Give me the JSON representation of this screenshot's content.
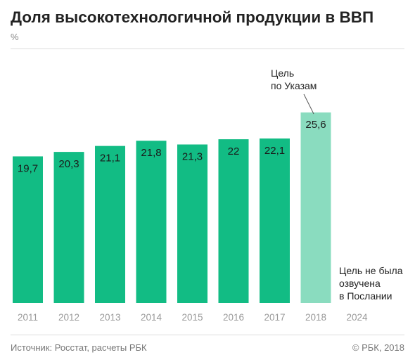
{
  "title": "Доля высокотехнологичной продукции в ВВП",
  "unit": "%",
  "footer": {
    "source": "Источник: Росстат, расчеты РБК",
    "copyright": "© РБК, 2018"
  },
  "colors": {
    "actual": "#12bc84",
    "target": "#8adcbf"
  },
  "chart_data": {
    "type": "bar",
    "categories": [
      "2011",
      "2012",
      "2013",
      "2014",
      "2015",
      "2016",
      "2017",
      "2018",
      "2024"
    ],
    "values": [
      19.7,
      20.3,
      21.1,
      21.8,
      21.3,
      22,
      22.1,
      25.6,
      null
    ],
    "value_labels": [
      "19,7",
      "20,3",
      "21,1",
      "21,8",
      "21,3",
      "22",
      "22,1",
      "25,6",
      ""
    ],
    "highlight": [
      false,
      false,
      false,
      false,
      false,
      false,
      false,
      true,
      false
    ],
    "ylim": [
      0,
      25.6
    ],
    "grid": false,
    "annotations": [
      {
        "category": "2018",
        "lines": [
          "Цель",
          "по Указам"
        ]
      },
      {
        "category": "2024",
        "lines": [
          "Цель не была",
          "озвучена",
          "в Послании"
        ]
      }
    ]
  }
}
